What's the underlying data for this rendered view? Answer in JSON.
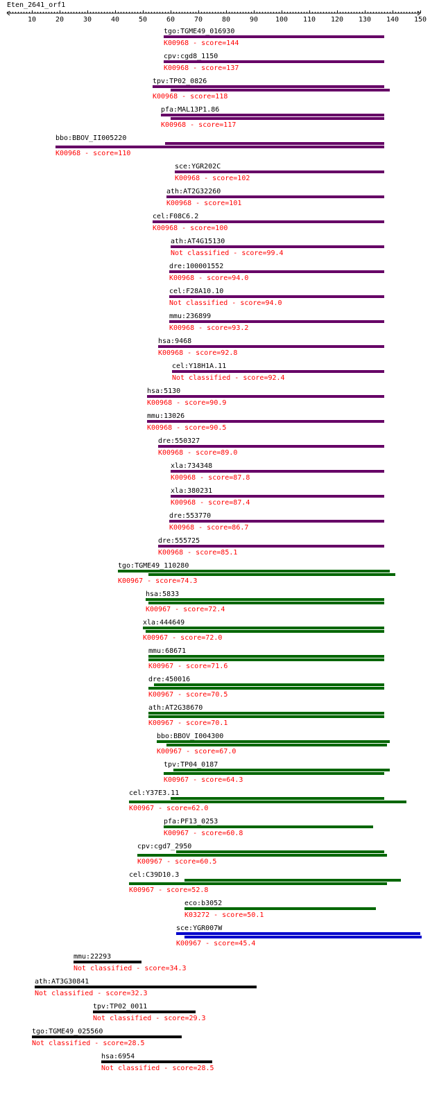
{
  "title": "Eten_2641_orf1",
  "axis": {
    "min": 1,
    "max": 150,
    "ticks": [
      10,
      20,
      30,
      40,
      50,
      60,
      70,
      80,
      90,
      100,
      110,
      120,
      130,
      140,
      150
    ]
  },
  "colors": {
    "purple": "#660066",
    "green": "#006600",
    "blue": "#0000cc",
    "black": "#000000",
    "label": "#000000",
    "annotation": "#ff0000"
  },
  "hits": [
    {
      "gene": "tgo:TGME49_016930",
      "annotation": "K00968 - score=144",
      "color": "purple",
      "bars": [
        [
          57.5,
          137
        ]
      ]
    },
    {
      "gene": "cpv:cgd8_1150",
      "annotation": "K00968 - score=137",
      "color": "purple",
      "bars": [
        [
          57.5,
          137
        ]
      ]
    },
    {
      "gene": "tpv:TP02_0826",
      "annotation": "K00968 - score=118",
      "color": "purple",
      "bars": [
        [
          53.5,
          137
        ],
        [
          60,
          139
        ]
      ]
    },
    {
      "gene": "pfa:MAL13P1.86",
      "annotation": "K00968 - score=117",
      "color": "purple",
      "bars": [
        [
          56.5,
          137
        ],
        [
          60,
          137
        ]
      ]
    },
    {
      "gene": "bbo:BBOV_II005220",
      "annotation": "K00968 - score=110",
      "color": "purple",
      "bars": [
        [
          58,
          137
        ],
        [
          18.5,
          137
        ]
      ]
    },
    {
      "gene": "sce:YGR202C",
      "annotation": "K00968 - score=102",
      "color": "purple",
      "bars": [
        [
          61.5,
          137
        ]
      ]
    },
    {
      "gene": "ath:AT2G32260",
      "annotation": "K00968 - score=101",
      "color": "purple",
      "bars": [
        [
          58.5,
          137
        ]
      ]
    },
    {
      "gene": "cel:F08C6.2",
      "annotation": "K00968 - score=100",
      "color": "purple",
      "bars": [
        [
          53.5,
          137
        ]
      ]
    },
    {
      "gene": "ath:AT4G15130",
      "annotation": "Not classified - score=99.4",
      "color": "purple",
      "bars": [
        [
          60,
          137
        ]
      ]
    },
    {
      "gene": "dre:100001552",
      "annotation": "K00968 - score=94.0",
      "color": "purple",
      "bars": [
        [
          59.5,
          137
        ]
      ]
    },
    {
      "gene": "cel:F28A10.10",
      "annotation": "Not classified - score=94.0",
      "color": "purple",
      "bars": [
        [
          59.5,
          137
        ]
      ]
    },
    {
      "gene": "mmu:236899",
      "annotation": "K00968 - score=93.2",
      "color": "purple",
      "bars": [
        [
          59.5,
          137
        ]
      ]
    },
    {
      "gene": "hsa:9468",
      "annotation": "K00968 - score=92.8",
      "color": "purple",
      "bars": [
        [
          55.5,
          137
        ]
      ]
    },
    {
      "gene": "cel:Y18H1A.11",
      "annotation": "Not classified - score=92.4",
      "color": "purple",
      "bars": [
        [
          60.5,
          137
        ]
      ]
    },
    {
      "gene": "hsa:5130",
      "annotation": "K00968 - score=90.9",
      "color": "purple",
      "bars": [
        [
          51.5,
          137
        ]
      ]
    },
    {
      "gene": "mmu:13026",
      "annotation": "K00968 - score=90.5",
      "color": "purple",
      "bars": [
        [
          51.5,
          137
        ]
      ]
    },
    {
      "gene": "dre:550327",
      "annotation": "K00968 - score=89.0",
      "color": "purple",
      "bars": [
        [
          55.5,
          137
        ]
      ]
    },
    {
      "gene": "xla:734348",
      "annotation": "K00968 - score=87.8",
      "color": "purple",
      "bars": [
        [
          60,
          137
        ]
      ]
    },
    {
      "gene": "xla:380231",
      "annotation": "K00968 - score=87.4",
      "color": "purple",
      "bars": [
        [
          60,
          137
        ]
      ]
    },
    {
      "gene": "dre:553770",
      "annotation": "K00968 - score=86.7",
      "color": "purple",
      "bars": [
        [
          59.5,
          137
        ]
      ]
    },
    {
      "gene": "dre:555725",
      "annotation": "K00968 - score=85.1",
      "color": "purple",
      "bars": [
        [
          55.5,
          137
        ]
      ]
    },
    {
      "gene": "tgo:TGME49_110280",
      "annotation": "K00967 - score=74.3",
      "color": "green",
      "bars": [
        [
          41,
          139
        ],
        [
          52,
          141
        ]
      ]
    },
    {
      "gene": "hsa:5833",
      "annotation": "K00967 - score=72.4",
      "color": "green",
      "bars": [
        [
          51,
          137
        ],
        [
          52,
          137
        ]
      ]
    },
    {
      "gene": "xla:444649",
      "annotation": "K00967 - score=72.0",
      "color": "green",
      "bars": [
        [
          50,
          137
        ],
        [
          51,
          137
        ]
      ]
    },
    {
      "gene": "mmu:68671",
      "annotation": "K00967 - score=71.6",
      "color": "green",
      "bars": [
        [
          52,
          137
        ],
        [
          52,
          137
        ]
      ]
    },
    {
      "gene": "dre:450016",
      "annotation": "K00967 - score=70.5",
      "color": "green",
      "bars": [
        [
          54,
          137
        ],
        [
          52,
          137
        ]
      ]
    },
    {
      "gene": "ath:AT2G38670",
      "annotation": "K00967 - score=70.1",
      "color": "green",
      "bars": [
        [
          52,
          137
        ],
        [
          52,
          137
        ]
      ]
    },
    {
      "gene": "bbo:BBOV_I004300",
      "annotation": "K00967 - score=67.0",
      "color": "green",
      "bars": [
        [
          55,
          139
        ],
        [
          58.5,
          138
        ]
      ]
    },
    {
      "gene": "tpv:TP04_0187",
      "annotation": "K00967 - score=64.3",
      "color": "green",
      "bars": [
        [
          61,
          139
        ],
        [
          57.5,
          137
        ]
      ]
    },
    {
      "gene": "cel:Y37E3.11",
      "annotation": "K00967 - score=62.0",
      "color": "green",
      "bars": [
        [
          60,
          137
        ],
        [
          45,
          145
        ]
      ]
    },
    {
      "gene": "pfa:PF13_0253",
      "annotation": "K00967 - score=60.8",
      "color": "green",
      "bars": [
        [
          57.5,
          133
        ]
      ]
    },
    {
      "gene": "cpv:cgd7_2950",
      "annotation": "K00967 - score=60.5",
      "color": "green",
      "bars": [
        [
          62,
          137
        ],
        [
          48,
          138
        ]
      ]
    },
    {
      "gene": "cel:C39D10.3",
      "annotation": "K00967 - score=52.8",
      "color": "green",
      "bars": [
        [
          65,
          143
        ],
        [
          45,
          138
        ]
      ]
    },
    {
      "gene": "eco:b3052",
      "annotation": "K03272 - score=50.1",
      "color": "green",
      "bars": [
        [
          65,
          134
        ]
      ]
    },
    {
      "gene": "sce:YGR007W",
      "annotation": "K00967 - score=45.4",
      "color": "blue",
      "bars": [
        [
          62,
          150
        ],
        [
          65,
          151
        ]
      ]
    },
    {
      "gene": "mmu:22293",
      "annotation": "Not classified - score=34.3",
      "color": "black",
      "bars": [
        [
          25,
          49.5
        ]
      ]
    },
    {
      "gene": "ath:AT3G30841",
      "annotation": "Not classified - score=32.3",
      "color": "black",
      "bars": [
        [
          11,
          91
        ]
      ]
    },
    {
      "gene": "tpv:TP02_0011",
      "annotation": "Not classified - score=29.3",
      "color": "black",
      "bars": [
        [
          32,
          69
        ]
      ]
    },
    {
      "gene": "tgo:TGME49_025560",
      "annotation": "Not classified - score=28.5",
      "color": "black",
      "bars": [
        [
          10,
          64
        ]
      ]
    },
    {
      "gene": "hsa:6954",
      "annotation": "Not classified - score=28.5",
      "color": "black",
      "bars": [
        [
          35,
          75
        ]
      ]
    }
  ]
}
